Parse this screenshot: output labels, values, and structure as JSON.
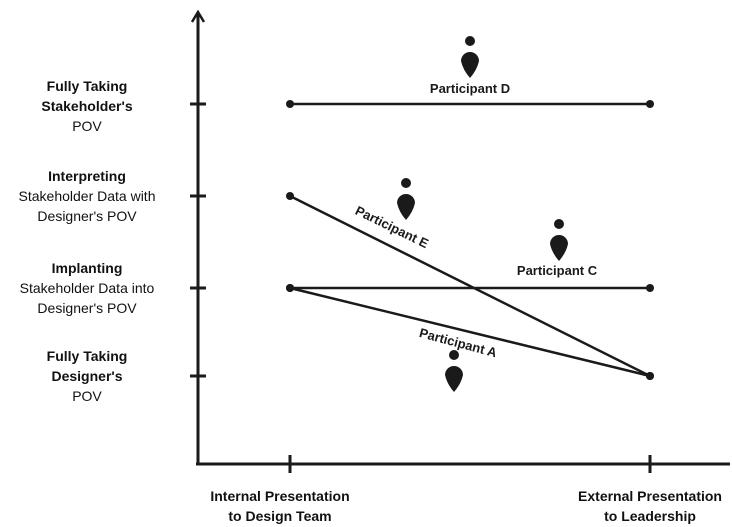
{
  "y_levels": [
    {
      "bold_lines": [
        "Fully Taking",
        "Stakeholder's"
      ],
      "rest_lines": [
        "POV"
      ]
    },
    {
      "bold_lines": [
        "Interpreting"
      ],
      "rest_lines": [
        "Stakeholder Data with",
        "Designer's POV"
      ]
    },
    {
      "bold_lines": [
        "Implanting"
      ],
      "rest_lines": [
        "Stakeholder Data into",
        "Designer's POV"
      ]
    },
    {
      "bold_lines": [
        "Fully Taking",
        "Designer's"
      ],
      "rest_lines": [
        "POV"
      ]
    }
  ],
  "x_stages": [
    {
      "lines": [
        "Internal Presentation",
        "to Design Team"
      ]
    },
    {
      "lines": [
        "External Presentation",
        "to Leadership"
      ]
    }
  ],
  "participants": [
    {
      "name": "Participant D",
      "from_level": 1,
      "to_level": 1
    },
    {
      "name": "Participant E",
      "from_level": 2,
      "to_level": 4
    },
    {
      "name": "Participant C",
      "from_level": 3,
      "to_level": 3
    },
    {
      "name": "Participant A",
      "from_level": 3,
      "to_level": 4
    }
  ],
  "icons": [
    "person-pin-icon",
    "person-pin-icon",
    "person-pin-icon",
    "person-pin-icon"
  ],
  "colors": {
    "line": "#1a1a1a",
    "background": "#ffffff"
  }
}
